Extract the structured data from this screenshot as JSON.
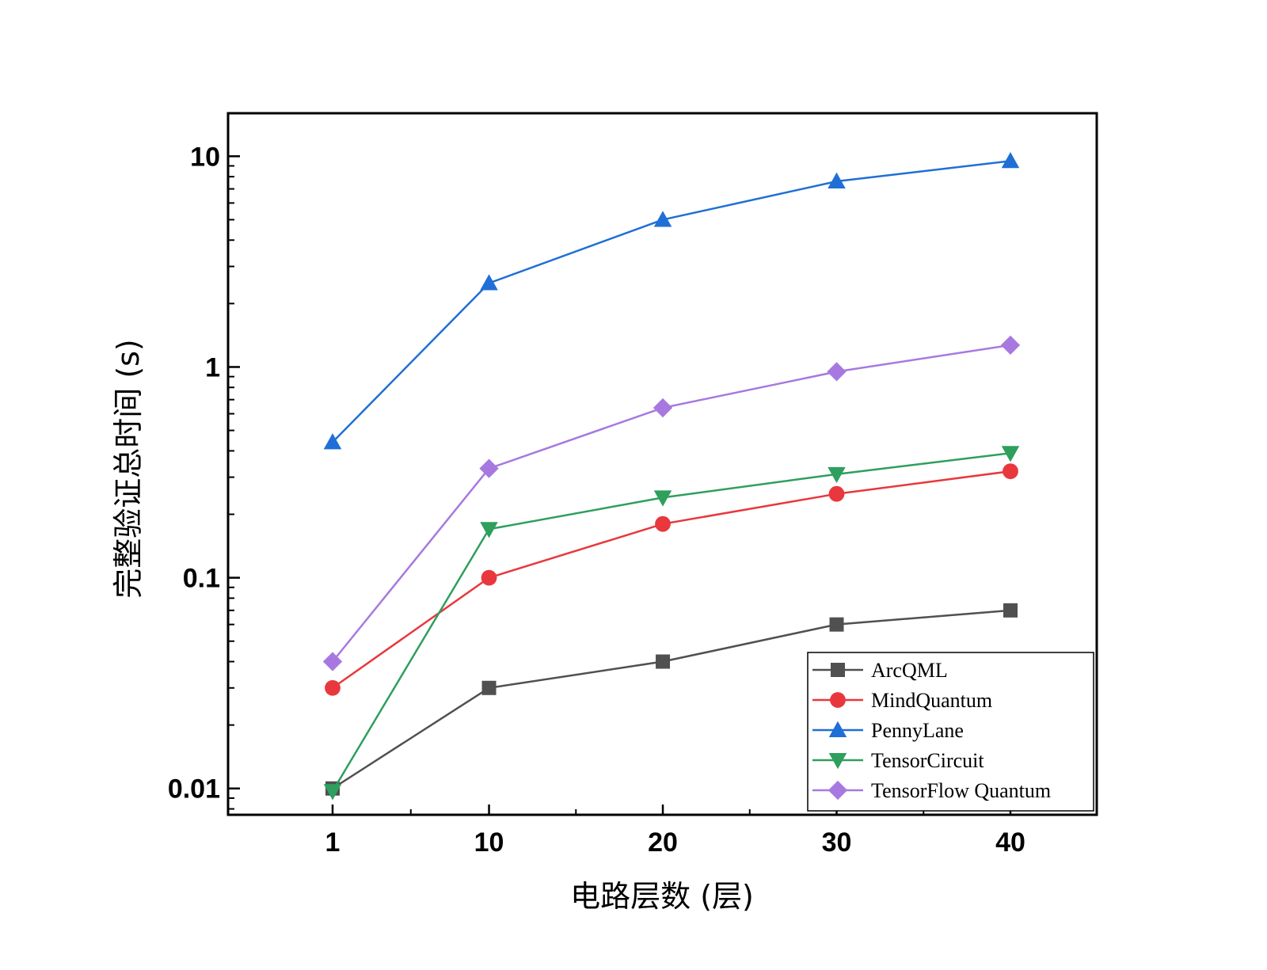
{
  "chart_data": {
    "type": "line",
    "title": "",
    "xlabel": "电路层数 (层)",
    "ylabel": "完整验证总时间 (s)",
    "y_scale": "log",
    "ylim": [
      0.0075,
      16
    ],
    "x_ticks": [
      "1",
      "10",
      "20",
      "30",
      "40"
    ],
    "y_ticks": [
      {
        "value": 10,
        "label": "10"
      },
      {
        "value": 1,
        "label": "1"
      },
      {
        "value": 0.1,
        "label": "0.1"
      },
      {
        "value": 0.01,
        "label": "0.01"
      }
    ],
    "categories": [
      "1",
      "10",
      "20",
      "30",
      "40"
    ],
    "grid": false,
    "legend_position": "bottom-right",
    "series": [
      {
        "name": "ArcQML",
        "color": "#505050",
        "marker": "square",
        "values": [
          0.01,
          0.03,
          0.04,
          0.06,
          0.07
        ]
      },
      {
        "name": "MindQuantum",
        "color": "#e8383d",
        "marker": "circle",
        "values": [
          0.03,
          0.1,
          0.18,
          0.25,
          0.32
        ]
      },
      {
        "name": "PennyLane",
        "color": "#1f6fd6",
        "marker": "triangle-up",
        "values": [
          0.44,
          2.5,
          5.0,
          7.6,
          9.5
        ]
      },
      {
        "name": "TensorCircuit",
        "color": "#2e9f5d",
        "marker": "triangle-down",
        "values": [
          0.0097,
          0.17,
          0.24,
          0.31,
          0.39
        ]
      },
      {
        "name": "TensorFlow Quantum",
        "color": "#a779e0",
        "marker": "diamond",
        "values": [
          0.04,
          0.33,
          0.64,
          0.95,
          1.27
        ]
      }
    ]
  }
}
